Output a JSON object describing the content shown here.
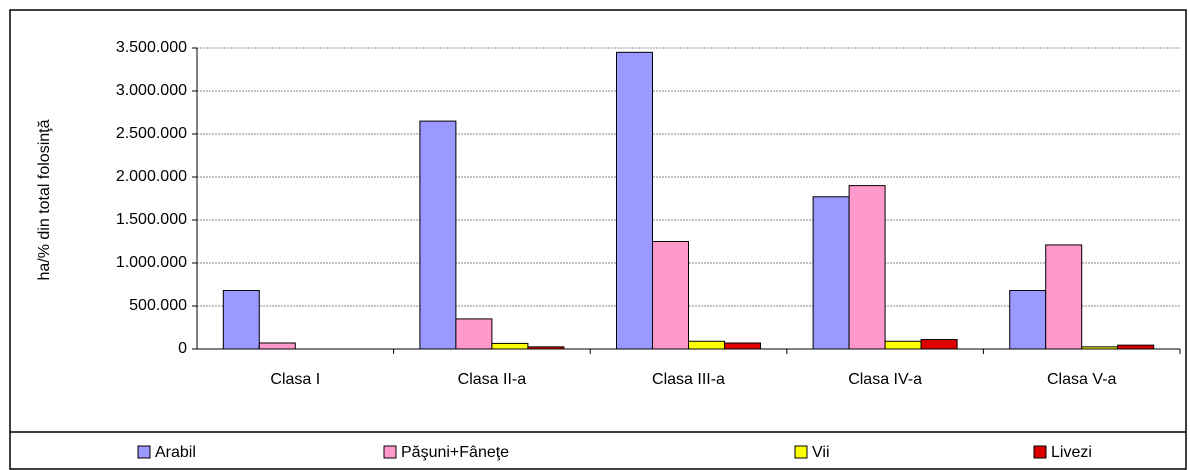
{
  "chart_data": {
    "type": "bar",
    "y_label": "ha/% din total folosinţă",
    "categories": [
      "Clasa I",
      "Clasa II-a",
      "Clasa III-a",
      "Clasa IV-a",
      "Clasa V-a"
    ],
    "series": [
      {
        "name": "Arabil",
        "color": "#9999ff",
        "values": [
          680000,
          2650000,
          3450000,
          1770000,
          680000
        ]
      },
      {
        "name": "Păşuni+Fâneţe",
        "color": "#ff99cc",
        "values": [
          70000,
          350000,
          1250000,
          1900000,
          1210000
        ]
      },
      {
        "name": "Vii",
        "color": "#ffff00",
        "values": [
          0,
          65000,
          90000,
          90000,
          25000
        ]
      },
      {
        "name": "Livezi",
        "color": "#dd0000",
        "values": [
          0,
          25000,
          70000,
          110000,
          45000
        ]
      }
    ],
    "ylim": [
      0,
      3500000
    ],
    "yticks": [
      0,
      {
        "value": 500000,
        "label": "500.000"
      },
      {
        "value": 1000000,
        "label": "1.000.000"
      },
      {
        "value": 1500000,
        "label": "1.500.000"
      },
      {
        "value": 2000000,
        "label": "2.000.000"
      },
      {
        "value": 2500000,
        "label": "2.500.000"
      },
      {
        "value": 3000000,
        "label": "3.000.000"
      },
      {
        "value": 3500000,
        "label": "3.500.000"
      }
    ],
    "grid": true,
    "legend": "bottom"
  }
}
